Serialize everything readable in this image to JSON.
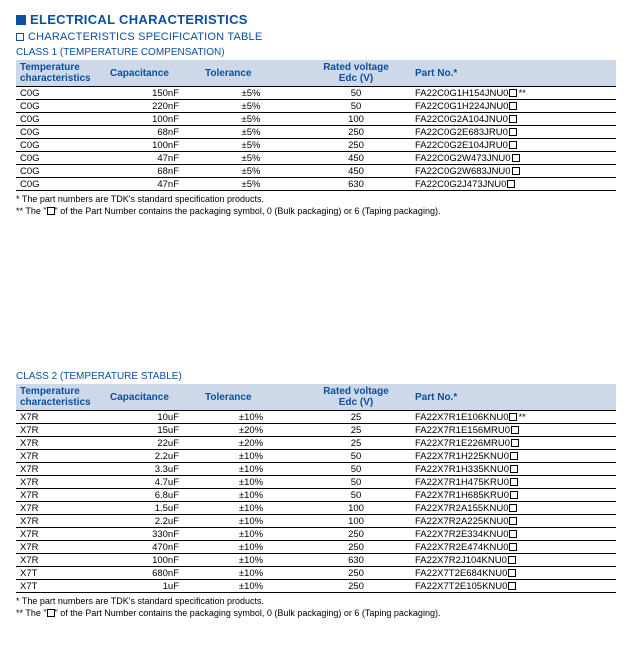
{
  "headings": {
    "h1": "ELECTRICAL CHARACTERISTICS",
    "h2": "CHARACTERISTICS SPECIFICATION TABLE"
  },
  "colors": {
    "accent": "#0a4fa0",
    "header_bg": "#cdd9e8",
    "rule": "#000000"
  },
  "columns": {
    "temp": "Temperature characteristics",
    "cap": "Capacitance",
    "tol": "Tolerance",
    "rv_line1": "Rated voltage",
    "rv_line2": "Edc (V)",
    "pn": "Part No.*"
  },
  "class1": {
    "label": "CLASS 1 (TEMPERATURE COMPENSATION)",
    "rows": [
      {
        "tc": "C0G",
        "cap": "150nF",
        "tol": "±5%",
        "rv": "50",
        "pn": "FA22C0G1H154JNU0",
        "star": true
      },
      {
        "tc": "C0G",
        "cap": "220nF",
        "tol": "±5%",
        "rv": "50",
        "pn": "FA22C0G1H224JNU0",
        "star": false
      },
      {
        "tc": "C0G",
        "cap": "100nF",
        "tol": "±5%",
        "rv": "100",
        "pn": "FA22C0G2A104JNU0",
        "star": false
      },
      {
        "tc": "C0G",
        "cap": "68nF",
        "tol": "±5%",
        "rv": "250",
        "pn": "FA22C0G2E683JRU0",
        "star": false
      },
      {
        "tc": "C0G",
        "cap": "100nF",
        "tol": "±5%",
        "rv": "250",
        "pn": "FA22C0G2E104JRU0",
        "star": false
      },
      {
        "tc": "C0G",
        "cap": "47nF",
        "tol": "±5%",
        "rv": "450",
        "pn": "FA22C0G2W473JNU0",
        "star": false
      },
      {
        "tc": "C0G",
        "cap": "68nF",
        "tol": "±5%",
        "rv": "450",
        "pn": "FA22C0G2W683JNU0",
        "star": false
      },
      {
        "tc": "C0G",
        "cap": "47nF",
        "tol": "±5%",
        "rv": "630",
        "pn": "FA22C0G2J473JNU0",
        "star": false
      }
    ]
  },
  "class2": {
    "label": "CLASS 2 (TEMPERATURE STABLE)",
    "rows": [
      {
        "tc": "X7R",
        "cap": "10uF",
        "tol": "±10%",
        "rv": "25",
        "pn": "FA22X7R1E106KNU0",
        "star": true
      },
      {
        "tc": "X7R",
        "cap": "15uF",
        "tol": "±20%",
        "rv": "25",
        "pn": "FA22X7R1E156MRU0",
        "star": false
      },
      {
        "tc": "X7R",
        "cap": "22uF",
        "tol": "±20%",
        "rv": "25",
        "pn": "FA22X7R1E226MRU0",
        "star": false
      },
      {
        "tc": "X7R",
        "cap": "2.2uF",
        "tol": "±10%",
        "rv": "50",
        "pn": "FA22X7R1H225KNU0",
        "star": false
      },
      {
        "tc": "X7R",
        "cap": "3.3uF",
        "tol": "±10%",
        "rv": "50",
        "pn": "FA22X7R1H335KNU0",
        "star": false
      },
      {
        "tc": "X7R",
        "cap": "4.7uF",
        "tol": "±10%",
        "rv": "50",
        "pn": "FA22X7R1H475KRU0",
        "star": false
      },
      {
        "tc": "X7R",
        "cap": "6.8uF",
        "tol": "±10%",
        "rv": "50",
        "pn": "FA22X7R1H685KRU0",
        "star": false
      },
      {
        "tc": "X7R",
        "cap": "1.5uF",
        "tol": "±10%",
        "rv": "100",
        "pn": "FA22X7R2A155KNU0",
        "star": false
      },
      {
        "tc": "X7R",
        "cap": "2.2uF",
        "tol": "±10%",
        "rv": "100",
        "pn": "FA22X7R2A225KNU0",
        "star": false
      },
      {
        "tc": "X7R",
        "cap": "330nF",
        "tol": "±10%",
        "rv": "250",
        "pn": "FA22X7R2E334KNU0",
        "star": false
      },
      {
        "tc": "X7R",
        "cap": "470nF",
        "tol": "±10%",
        "rv": "250",
        "pn": "FA22X7R2E474KNU0",
        "star": false
      },
      {
        "tc": "X7R",
        "cap": "100nF",
        "tol": "±10%",
        "rv": "630",
        "pn": "FA22X7R2J104KNU0",
        "star": false
      },
      {
        "tc": "X7T",
        "cap": "680nF",
        "tol": "±10%",
        "rv": "250",
        "pn": "FA22X7T2E684KNU0",
        "star": false
      },
      {
        "tc": "X7T",
        "cap": "1uF",
        "tol": "±10%",
        "rv": "250",
        "pn": "FA22X7T2E105KNU0",
        "star": false
      }
    ]
  },
  "notes": {
    "n1": "* The part numbers are TDK's standard specification products.",
    "n2_a": "** The \"",
    "n2_b": "\" of the Part Number contains the packaging symbol, 0 (Bulk packaging) or 6 (Taping packaging)."
  }
}
